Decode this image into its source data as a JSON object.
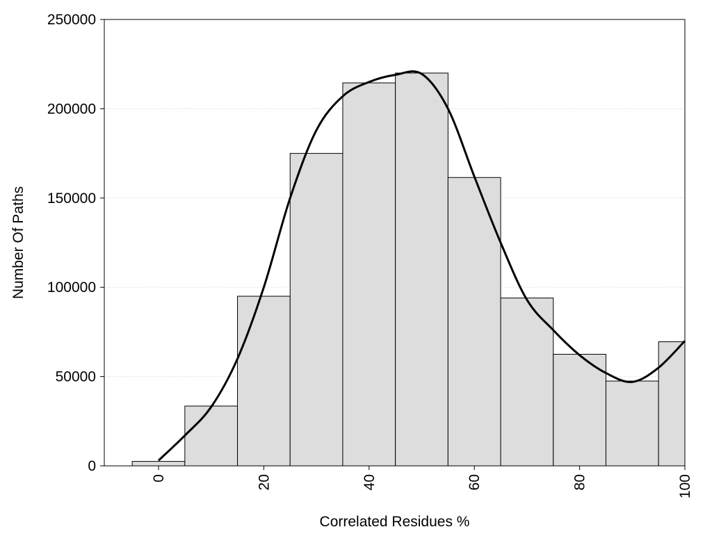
{
  "chart_data": {
    "type": "bar",
    "title": "",
    "xlabel": "Correlated Residues %",
    "ylabel": "Number Of Paths",
    "x": [
      0,
      10,
      20,
      30,
      40,
      50,
      60,
      70,
      80,
      90,
      100
    ],
    "values": [
      2500,
      33500,
      95000,
      175000,
      214500,
      220000,
      161500,
      94000,
      62500,
      47500,
      69500
    ],
    "bin_width": 10,
    "curve": {
      "x": [
        0,
        5,
        10,
        15,
        20,
        25,
        30,
        35,
        40,
        45,
        50,
        55,
        60,
        65,
        70,
        75,
        80,
        85,
        90,
        95,
        100
      ],
      "y": [
        3000,
        17000,
        33000,
        60000,
        100000,
        150000,
        188000,
        207000,
        215000,
        219000,
        219500,
        200000,
        162000,
        125000,
        93000,
        76000,
        62000,
        52000,
        47000,
        55000,
        70000
      ]
    },
    "xlim": [
      -10,
      100
    ],
    "ylim": [
      0,
      250000
    ],
    "xticks": [
      0,
      20,
      40,
      60,
      80,
      100
    ],
    "xtick_labels": [
      "0",
      "20",
      "40",
      "60",
      "80",
      "100"
    ],
    "yticks": [
      0,
      50000,
      100000,
      150000,
      200000,
      250000
    ],
    "ytick_labels": [
      "0",
      "50000",
      "100000",
      "150000",
      "200000",
      "250000"
    ],
    "grid": "horizontal-dotted",
    "bar_fill": "#dddddd",
    "bar_stroke": "#000000",
    "curve_color": "#000000"
  }
}
